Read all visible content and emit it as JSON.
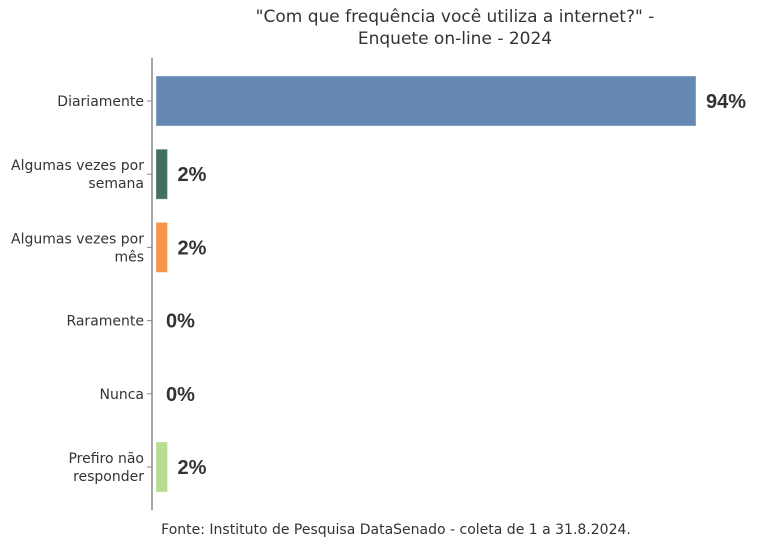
{
  "chart_data": {
    "type": "bar",
    "orientation": "horizontal",
    "title": [
      "\"Com que frequência você utiliza a internet?\" -",
      "Enquete on-line - 2024"
    ],
    "categories": [
      [
        "Diariamente"
      ],
      [
        "Algumas vezes por",
        "semana"
      ],
      [
        "Algumas vezes por",
        "mês"
      ],
      [
        "Raramente"
      ],
      [
        "Nunca"
      ],
      [
        "Prefiro não",
        "responder"
      ]
    ],
    "values": [
      94,
      2,
      2,
      0,
      0,
      2
    ],
    "value_labels": [
      "94%",
      "2%",
      "2%",
      "0%",
      "0%",
      "2%"
    ],
    "colors": [
      "#6689B3",
      "#43705D",
      "#F5944A",
      "#B5B5B5",
      "#B5B5B5",
      "#B8DC8E"
    ],
    "xlim": [
      0,
      100
    ],
    "grid": false,
    "legend": "none",
    "source": "Fonte: Instituto de Pesquisa DataSenado - coleta de 1 a 31.8.2024."
  }
}
